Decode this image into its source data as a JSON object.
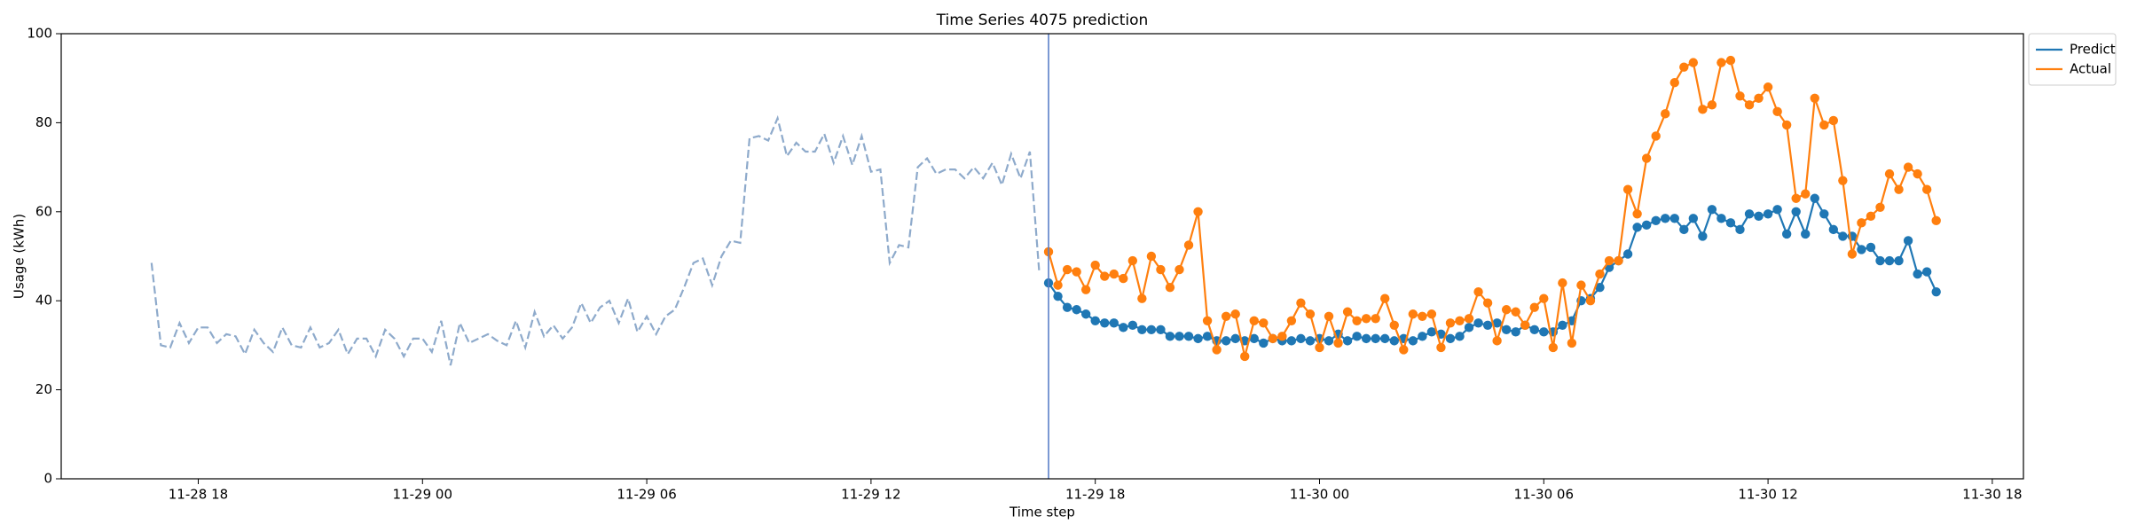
{
  "chart_data": {
    "type": "line",
    "title": "Time Series 4075 prediction",
    "x_label": "Time step",
    "y_label": "Usage (kWh)",
    "x": [
      "11-28 16:45",
      "11-28 17:00",
      "11-28 17:15",
      "11-28 17:30",
      "11-28 17:45",
      "11-28 18:00",
      "11-28 18:15",
      "11-28 18:30",
      "11-28 18:45",
      "11-28 19:00",
      "11-28 19:15",
      "11-28 19:30",
      "11-28 19:45",
      "11-28 20:00",
      "11-28 20:15",
      "11-28 20:30",
      "11-28 20:45",
      "11-28 21:00",
      "11-28 21:15",
      "11-28 21:30",
      "11-28 21:45",
      "11-28 22:00",
      "11-28 22:15",
      "11-28 22:30",
      "11-28 22:45",
      "11-28 23:00",
      "11-28 23:15",
      "11-28 23:30",
      "11-28 23:45",
      "11-29 00:00",
      "11-29 00:15",
      "11-29 00:30",
      "11-29 00:45",
      "11-29 01:00",
      "11-29 01:15",
      "11-29 01:30",
      "11-29 01:45",
      "11-29 02:00",
      "11-29 02:15",
      "11-29 02:30",
      "11-29 02:45",
      "11-29 03:00",
      "11-29 03:15",
      "11-29 03:30",
      "11-29 03:45",
      "11-29 04:00",
      "11-29 04:15",
      "11-29 04:30",
      "11-29 04:45",
      "11-29 05:00",
      "11-29 05:15",
      "11-29 05:30",
      "11-29 05:45",
      "11-29 06:00",
      "11-29 06:15",
      "11-29 06:30",
      "11-29 06:45",
      "11-29 07:00",
      "11-29 07:15",
      "11-29 07:30",
      "11-29 07:45",
      "11-29 08:00",
      "11-29 08:15",
      "11-29 08:30",
      "11-29 08:45",
      "11-29 09:00",
      "11-29 09:15",
      "11-29 09:30",
      "11-29 09:45",
      "11-29 10:00",
      "11-29 10:15",
      "11-29 10:30",
      "11-29 10:45",
      "11-29 11:00",
      "11-29 11:15",
      "11-29 11:30",
      "11-29 11:45",
      "11-29 12:00",
      "11-29 12:15",
      "11-29 12:30",
      "11-29 12:45",
      "11-29 13:00",
      "11-29 13:15",
      "11-29 13:30",
      "11-29 13:45",
      "11-29 14:00",
      "11-29 14:15",
      "11-29 14:30",
      "11-29 14:45",
      "11-29 15:00",
      "11-29 15:15",
      "11-29 15:30",
      "11-29 15:45",
      "11-29 16:00",
      "11-29 16:15",
      "11-29 16:30",
      "11-29 16:45",
      "11-29 17:00",
      "11-29 17:15",
      "11-29 17:30",
      "11-29 17:45",
      "11-29 18:00",
      "11-29 18:15",
      "11-29 18:30",
      "11-29 18:45",
      "11-29 19:00",
      "11-29 19:15",
      "11-29 19:30",
      "11-29 19:45",
      "11-29 20:00",
      "11-29 20:15",
      "11-29 20:30",
      "11-29 20:45",
      "11-29 21:00",
      "11-29 21:15",
      "11-29 21:30",
      "11-29 21:45",
      "11-29 22:00",
      "11-29 22:15",
      "11-29 22:30",
      "11-29 22:45",
      "11-29 23:00",
      "11-29 23:15",
      "11-29 23:30",
      "11-29 23:45",
      "11-30 00:00",
      "11-30 00:15",
      "11-30 00:30",
      "11-30 00:45",
      "11-30 01:00",
      "11-30 01:15",
      "11-30 01:30",
      "11-30 01:45",
      "11-30 02:00",
      "11-30 02:15",
      "11-30 02:30",
      "11-30 02:45",
      "11-30 03:00",
      "11-30 03:15",
      "11-30 03:30",
      "11-30 03:45",
      "11-30 04:00",
      "11-30 04:15",
      "11-30 04:30",
      "11-30 04:45",
      "11-30 05:00",
      "11-30 05:15",
      "11-30 05:30",
      "11-30 05:45",
      "11-30 06:00",
      "11-30 06:15",
      "11-30 06:30",
      "11-30 06:45",
      "11-30 07:00",
      "11-30 07:15",
      "11-30 07:30",
      "11-30 07:45",
      "11-30 08:00",
      "11-30 08:15",
      "11-30 08:30",
      "11-30 08:45",
      "11-30 09:00",
      "11-30 09:15",
      "11-30 09:30",
      "11-30 09:45",
      "11-30 10:00",
      "11-30 10:15",
      "11-30 10:30",
      "11-30 10:45",
      "11-30 11:00",
      "11-30 11:15",
      "11-30 11:30",
      "11-30 11:45",
      "11-30 12:00",
      "11-30 12:15",
      "11-30 12:30",
      "11-30 12:45",
      "11-30 13:00",
      "11-30 13:15",
      "11-30 13:30",
      "11-30 13:45",
      "11-30 14:00",
      "11-30 14:15",
      "11-30 14:30",
      "11-30 14:45",
      "11-30 15:00",
      "11-30 15:15",
      "11-30 15:30",
      "11-30 15:45",
      "11-30 16:00",
      "11-30 16:15",
      "11-30 16:30"
    ],
    "series": [
      {
        "color": "#8eaacb",
        "linestyle": "dashed",
        "markers": false,
        "values": [
          48.5,
          30,
          29.5,
          35,
          30.5,
          34,
          34,
          30.5,
          32.5,
          32,
          28,
          33.5,
          30.5,
          28.5,
          34,
          30,
          29.5,
          34,
          29.5,
          30.5,
          33.5,
          28,
          31.5,
          31.5,
          27.5,
          33.5,
          31.5,
          27.5,
          31.5,
          31.5,
          28.5,
          35.5,
          25.5,
          35,
          30.5,
          31.5,
          32.5,
          31,
          30,
          35.5,
          29.5,
          37.5,
          32,
          34.5,
          31.5,
          34,
          39.5,
          35,
          38.5,
          40,
          35,
          40.5,
          33,
          36.5,
          32.5,
          36.5,
          38,
          43,
          48.5,
          49.5,
          43.5,
          50,
          53.5,
          53,
          76.5,
          77,
          76,
          81,
          72.5,
          75.5,
          73.5,
          73.5,
          77.5,
          71,
          77,
          70.5,
          77,
          69,
          69.5,
          48.5,
          52.5,
          52,
          70,
          72,
          68.5,
          69.5,
          69.5,
          67.5,
          70,
          67.5,
          71,
          66,
          73,
          67.5,
          73.5,
          46.5,
          null,
          null,
          null,
          null,
          null,
          null,
          null,
          null,
          null,
          null,
          null,
          null,
          null,
          null,
          null,
          null,
          null,
          null,
          null,
          null,
          null,
          null,
          null,
          null,
          null,
          null,
          null,
          null,
          null,
          null,
          null,
          null,
          null,
          null,
          null,
          null,
          null,
          null,
          null,
          null,
          null,
          null,
          null,
          null,
          null,
          null,
          null,
          null,
          null,
          null,
          null,
          null,
          null,
          null,
          null,
          null,
          null,
          null,
          null,
          null,
          null,
          null,
          null,
          null,
          null,
          null,
          null,
          null,
          null,
          null,
          null,
          null,
          null,
          null,
          null,
          null,
          null,
          null,
          null,
          null,
          null,
          null,
          null,
          null,
          null,
          null,
          null,
          null,
          null,
          null,
          null,
          null,
          null,
          null,
          null,
          null
        ]
      },
      {
        "name": "Predict",
        "color": "#1f77b4",
        "linestyle": "solid",
        "markers": true,
        "values": [
          null,
          null,
          null,
          null,
          null,
          null,
          null,
          null,
          null,
          null,
          null,
          null,
          null,
          null,
          null,
          null,
          null,
          null,
          null,
          null,
          null,
          null,
          null,
          null,
          null,
          null,
          null,
          null,
          null,
          null,
          null,
          null,
          null,
          null,
          null,
          null,
          null,
          null,
          null,
          null,
          null,
          null,
          null,
          null,
          null,
          null,
          null,
          null,
          null,
          null,
          null,
          null,
          null,
          null,
          null,
          null,
          null,
          null,
          null,
          null,
          null,
          null,
          null,
          null,
          null,
          null,
          null,
          null,
          null,
          null,
          null,
          null,
          null,
          null,
          null,
          null,
          null,
          null,
          null,
          null,
          null,
          null,
          null,
          null,
          null,
          null,
          null,
          null,
          null,
          null,
          null,
          null,
          null,
          null,
          null,
          null,
          44,
          41,
          38.5,
          38,
          37,
          35.5,
          35,
          35,
          34,
          34.5,
          33.5,
          33.5,
          33.5,
          32,
          32,
          32,
          31.5,
          32,
          31,
          31,
          31.5,
          31,
          31.5,
          30.5,
          31.5,
          31,
          31,
          31.5,
          31,
          31.5,
          31,
          32.5,
          31,
          32,
          31.5,
          31.5,
          31.5,
          31,
          31.5,
          31,
          32,
          33,
          32.5,
          31.5,
          32,
          34,
          35,
          34.5,
          35,
          33.5,
          33,
          34.5,
          33.5,
          33,
          33,
          34.5,
          35.5,
          40,
          40.5,
          43,
          47.5,
          49,
          50.5,
          56.5,
          57,
          58,
          58.5,
          58.5,
          56,
          58.5,
          54.5,
          60.5,
          58.5,
          57.5,
          56,
          59.5,
          59,
          59.5,
          60.5,
          55,
          60,
          55,
          63,
          59.5,
          56,
          54.5,
          54.5,
          51.5,
          52,
          49,
          49,
          49,
          53.5,
          46,
          46.5,
          42
        ]
      },
      {
        "name": "Actual",
        "color": "#ff7f0e",
        "linestyle": "solid",
        "markers": true,
        "values": [
          null,
          null,
          null,
          null,
          null,
          null,
          null,
          null,
          null,
          null,
          null,
          null,
          null,
          null,
          null,
          null,
          null,
          null,
          null,
          null,
          null,
          null,
          null,
          null,
          null,
          null,
          null,
          null,
          null,
          null,
          null,
          null,
          null,
          null,
          null,
          null,
          null,
          null,
          null,
          null,
          null,
          null,
          null,
          null,
          null,
          null,
          null,
          null,
          null,
          null,
          null,
          null,
          null,
          null,
          null,
          null,
          null,
          null,
          null,
          null,
          null,
          null,
          null,
          null,
          null,
          null,
          null,
          null,
          null,
          null,
          null,
          null,
          null,
          null,
          null,
          null,
          null,
          null,
          null,
          null,
          null,
          null,
          null,
          null,
          null,
          null,
          null,
          null,
          null,
          null,
          null,
          null,
          null,
          null,
          null,
          null,
          51,
          43.5,
          47,
          46.5,
          42.5,
          48,
          45.5,
          46,
          45,
          49,
          40.5,
          50,
          47,
          43,
          47,
          52.5,
          60,
          35.5,
          29,
          36.5,
          37,
          27.5,
          35.5,
          35,
          31.5,
          32,
          35.5,
          39.5,
          37,
          29.5,
          36.5,
          30.5,
          37.5,
          35.5,
          36,
          36,
          40.5,
          34.5,
          29,
          37,
          36.5,
          37,
          29.5,
          35,
          35.5,
          36,
          42,
          39.5,
          31,
          38,
          37.5,
          34.5,
          38.5,
          40.5,
          29.5,
          44,
          30.5,
          43.5,
          40,
          46,
          49,
          49,
          65,
          59.5,
          72,
          77,
          82,
          89,
          92.5,
          93.5,
          83,
          84,
          93.5,
          94,
          86,
          84,
          85.5,
          88,
          82.5,
          79.5,
          63,
          64,
          85.5,
          79.5,
          80.5,
          67,
          50.5,
          57.5,
          59,
          61,
          68.5,
          65,
          70,
          68.5,
          65,
          58
        ]
      }
    ],
    "vline": "11-29 16:45",
    "vline_color": "#5a7fc7",
    "xlim": [
      "11-28 14:20",
      "11-30 18:50"
    ],
    "xticks": [
      {
        "value": "11-28 18:00",
        "label": "11-28 18"
      },
      {
        "value": "11-29 00:00",
        "label": "11-29 00"
      },
      {
        "value": "11-29 06:00",
        "label": "11-29 06"
      },
      {
        "value": "11-29 12:00",
        "label": "11-29 12"
      },
      {
        "value": "11-29 18:00",
        "label": "11-29 18"
      },
      {
        "value": "11-30 00:00",
        "label": "11-30 00"
      },
      {
        "value": "11-30 06:00",
        "label": "11-30 06"
      },
      {
        "value": "11-30 12:00",
        "label": "11-30 12"
      },
      {
        "value": "11-30 18:00",
        "label": "11-30 18"
      }
    ],
    "ylim": [
      0,
      100
    ],
    "yticks": [
      0,
      20,
      40,
      60,
      80,
      100
    ],
    "grid": false,
    "legend": "outside upper right"
  }
}
